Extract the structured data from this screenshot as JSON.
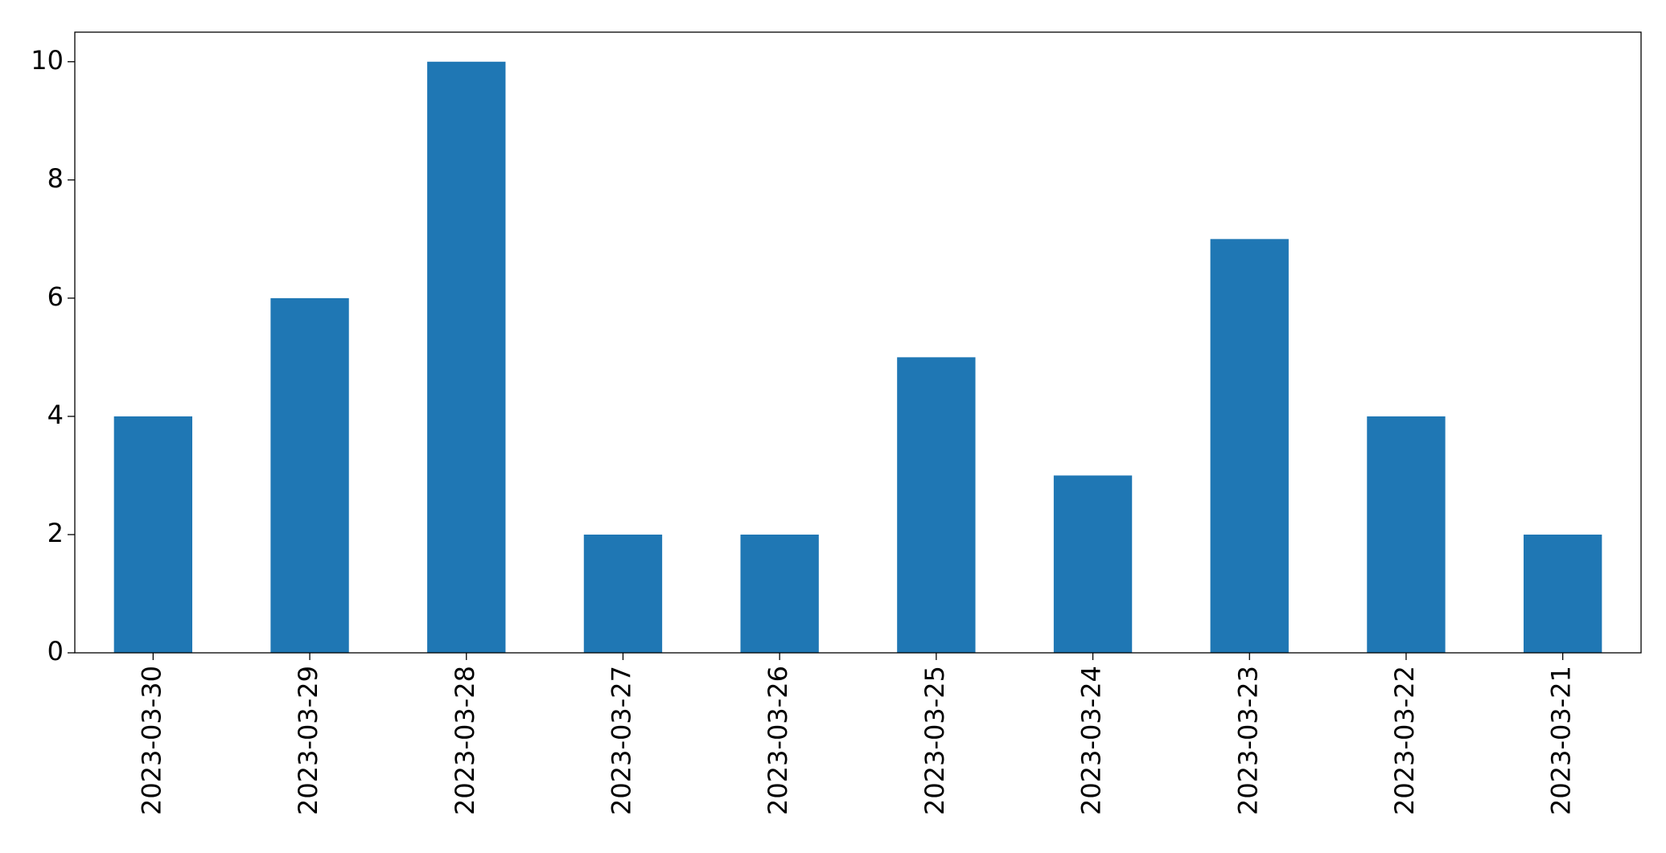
{
  "chart_data": {
    "type": "bar",
    "categories": [
      "2023-03-30",
      "2023-03-29",
      "2023-03-28",
      "2023-03-27",
      "2023-03-26",
      "2023-03-25",
      "2023-03-24",
      "2023-03-23",
      "2023-03-22",
      "2023-03-21"
    ],
    "values": [
      4,
      6,
      10,
      2,
      2,
      5,
      3,
      7,
      4,
      2
    ],
    "color": "#1f77b4",
    "ylim": [
      0,
      10.5
    ],
    "yticks": [
      0,
      2,
      4,
      6,
      8,
      10
    ],
    "grid": false
  }
}
